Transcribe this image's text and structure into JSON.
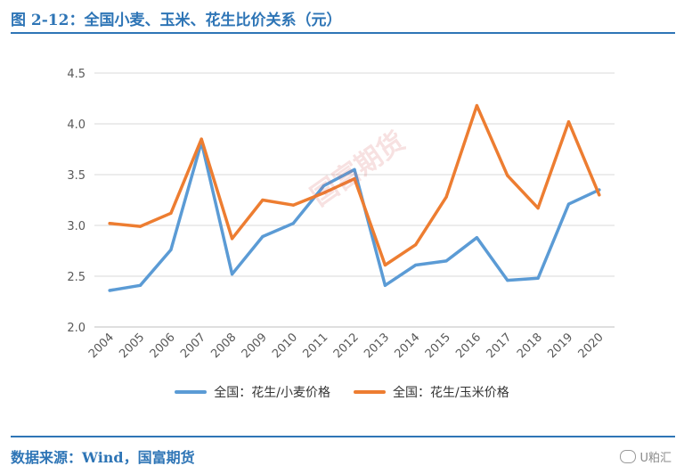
{
  "header": {
    "figure_title": "图 2-12：全国小麦、玉米、花生比价关系（元）"
  },
  "footer": {
    "source": "数据来源：Wind，国富期货",
    "brand": "U粕汇"
  },
  "watermark": {
    "text": "国富期货"
  },
  "colors": {
    "accent": "#2e75b6",
    "series_blue": "#5b9bd5",
    "series_orange": "#ed7d31",
    "grid": "#d9d9d9"
  },
  "chart_data": {
    "type": "line",
    "title": "",
    "xlabel": "",
    "ylabel": "",
    "ylim": [
      2.0,
      4.5
    ],
    "yticks": [
      "2.0",
      "2.5",
      "3.0",
      "3.5",
      "4.0",
      "4.5"
    ],
    "categories": [
      "2004",
      "2005",
      "2006",
      "2007",
      "2008",
      "2009",
      "2010",
      "2011",
      "2012",
      "2013",
      "2014",
      "2015",
      "2016",
      "2017",
      "2018",
      "2019",
      "2020"
    ],
    "grid": true,
    "legend_position": "bottom",
    "series": [
      {
        "name": "全国：花生/小麦价格",
        "color": "#5b9bd5",
        "values": [
          2.36,
          2.41,
          2.76,
          3.82,
          2.52,
          2.89,
          3.02,
          3.39,
          3.55,
          2.41,
          2.61,
          2.65,
          2.88,
          2.46,
          2.48,
          3.21,
          3.35
        ]
      },
      {
        "name": "全国：花生/玉米价格",
        "color": "#ed7d31",
        "values": [
          3.02,
          2.99,
          3.12,
          3.85,
          2.87,
          3.25,
          3.2,
          3.32,
          3.46,
          2.61,
          2.81,
          3.28,
          4.18,
          3.49,
          3.17,
          4.02,
          3.3
        ]
      }
    ]
  }
}
